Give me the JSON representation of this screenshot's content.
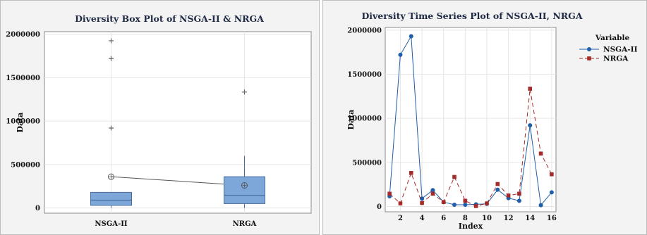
{
  "chart_data": [
    {
      "type": "box",
      "title": "Diversity Box Plot of NSGA-II & NRGA",
      "xlabel": "",
      "ylabel": "Data",
      "ylim": [
        -60000,
        2030000
      ],
      "yticks": [
        0,
        500000,
        1000000,
        1500000,
        2000000
      ],
      "categories": [
        "NSGA-II",
        "NRGA"
      ],
      "boxes": [
        {
          "name": "NSGA-II",
          "q1": 30000,
          "median": 90000,
          "q3": 180000,
          "whisker_low": 0,
          "whisker_high": 180000,
          "mean": 360000,
          "outliers": [
            920000,
            1720000,
            1925000
          ]
        },
        {
          "name": "NRGA",
          "q1": 50000,
          "median": 145000,
          "q3": 360000,
          "whisker_low": 0,
          "whisker_high": 600000,
          "mean": 260000,
          "outliers": [
            1335000
          ]
        }
      ],
      "mean_connect_line": true,
      "grid": true,
      "colors": {
        "box_fill": "#7da7d9",
        "box_stroke": "#4a6f9e",
        "mean_line": "#555555",
        "outlier": "#666666"
      }
    },
    {
      "type": "line",
      "title": "Diversity Time Series Plot of NSGA-II, NRGA",
      "xlabel": "Index",
      "ylabel": "Data",
      "xlim": [
        0.6,
        16.4
      ],
      "ylim": [
        -60000,
        2030000
      ],
      "xticks": [
        2,
        4,
        6,
        8,
        10,
        12,
        14,
        16
      ],
      "yticks": [
        0,
        500000,
        1000000,
        1500000,
        2000000
      ],
      "x": [
        1,
        2,
        3,
        4,
        5,
        6,
        7,
        8,
        9,
        10,
        11,
        12,
        13,
        14,
        15,
        16
      ],
      "legend_title": "Variable",
      "legend_position": "right",
      "grid": true,
      "series": [
        {
          "name": "NSGA-II",
          "color": "#1f5ea8",
          "marker": "circle",
          "dash": "solid",
          "values": [
            115000,
            1720000,
            1930000,
            90000,
            185000,
            50000,
            20000,
            20000,
            25000,
            30000,
            190000,
            95000,
            65000,
            920000,
            15000,
            160000
          ]
        },
        {
          "name": "NRGA",
          "color": "#a52a2a",
          "marker": "square",
          "dash": "dashed",
          "values": [
            145000,
            35000,
            380000,
            40000,
            145000,
            50000,
            335000,
            65000,
            5000,
            35000,
            255000,
            125000,
            145000,
            1335000,
            600000,
            365000
          ]
        }
      ]
    }
  ]
}
